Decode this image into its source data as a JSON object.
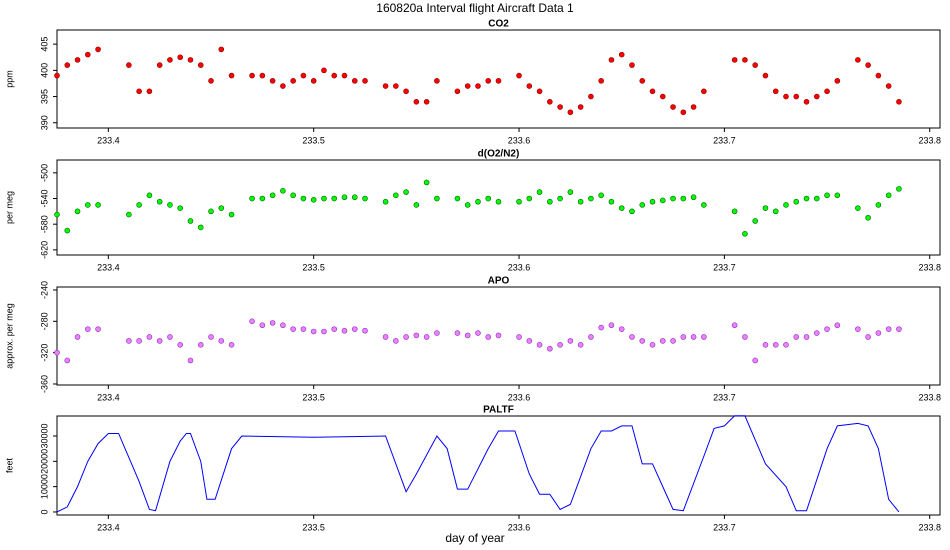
{
  "title": "160820a   Interval flight Aircraft Data 1",
  "xlabel": "day of year",
  "chart_data": [
    {
      "type": "scatter",
      "title": "CO2",
      "ylabel": "ppm",
      "color": "#ff0000",
      "edge": "#8b0000",
      "xlim": [
        233.375,
        233.805
      ],
      "xticks": [
        233.4,
        233.5,
        233.6,
        233.7,
        233.8
      ],
      "ylim": [
        389,
        407.7
      ],
      "yticks": [
        390,
        395,
        400,
        405
      ],
      "x": [
        233.375,
        233.38,
        233.385,
        233.39,
        233.395,
        233.41,
        233.415,
        233.42,
        233.425,
        233.43,
        233.435,
        233.44,
        233.445,
        233.45,
        233.455,
        233.46,
        233.47,
        233.475,
        233.48,
        233.485,
        233.49,
        233.495,
        233.5,
        233.505,
        233.51,
        233.515,
        233.52,
        233.525,
        233.535,
        233.54,
        233.545,
        233.55,
        233.555,
        233.56,
        233.57,
        233.575,
        233.58,
        233.585,
        233.59,
        233.6,
        233.605,
        233.61,
        233.615,
        233.62,
        233.625,
        233.63,
        233.635,
        233.64,
        233.645,
        233.65,
        233.655,
        233.66,
        233.665,
        233.67,
        233.675,
        233.68,
        233.685,
        233.69,
        233.705,
        233.71,
        233.715,
        233.72,
        233.725,
        233.73,
        233.735,
        233.74,
        233.745,
        233.75,
        233.755,
        233.765,
        233.77,
        233.775,
        233.78,
        233.785
      ],
      "values": [
        399,
        401,
        402,
        403,
        404,
        401,
        396,
        396,
        401,
        402,
        402.5,
        402,
        401,
        398,
        404,
        399,
        399,
        399,
        398,
        397,
        398,
        399,
        398,
        400,
        399,
        399,
        398,
        398,
        397,
        397,
        396,
        394,
        394,
        398,
        396,
        397,
        397,
        398,
        398,
        399,
        397,
        396,
        394,
        393,
        392,
        393,
        395,
        398,
        402,
        403,
        401,
        398,
        396,
        395,
        393,
        392,
        393,
        396,
        402,
        402,
        401,
        399,
        396,
        395,
        395,
        394,
        395,
        396,
        398,
        402,
        401,
        399,
        397,
        394
      ]
    },
    {
      "type": "scatter",
      "title": "d(O2/N2)",
      "ylabel": "per meg",
      "color": "#00ff00",
      "edge": "#006400",
      "xlim": [
        233.375,
        233.805
      ],
      "xticks": [
        233.4,
        233.5,
        233.6,
        233.7,
        233.8
      ],
      "ylim": [
        -628,
        -480
      ],
      "yticks": [
        -620,
        -580,
        -540,
        -500
      ],
      "x": [
        233.375,
        233.38,
        233.385,
        233.39,
        233.395,
        233.41,
        233.415,
        233.42,
        233.425,
        233.43,
        233.435,
        233.44,
        233.445,
        233.45,
        233.455,
        233.46,
        233.47,
        233.475,
        233.48,
        233.485,
        233.49,
        233.495,
        233.5,
        233.505,
        233.51,
        233.515,
        233.52,
        233.525,
        233.535,
        233.54,
        233.545,
        233.55,
        233.555,
        233.56,
        233.57,
        233.575,
        233.58,
        233.585,
        233.59,
        233.6,
        233.605,
        233.61,
        233.615,
        233.62,
        233.625,
        233.63,
        233.635,
        233.64,
        233.645,
        233.65,
        233.655,
        233.66,
        233.665,
        233.67,
        233.675,
        233.68,
        233.685,
        233.69,
        233.705,
        233.71,
        233.715,
        233.72,
        233.725,
        233.73,
        233.735,
        233.74,
        233.745,
        233.75,
        233.755,
        233.765,
        233.77,
        233.775,
        233.78,
        233.785
      ],
      "values": [
        -565,
        -590,
        -560,
        -550,
        -550,
        -565,
        -550,
        -535,
        -545,
        -550,
        -555,
        -575,
        -585,
        -560,
        -555,
        -565,
        -540,
        -540,
        -535,
        -528,
        -535,
        -540,
        -542,
        -540,
        -540,
        -538,
        -538,
        -540,
        -545,
        -535,
        -530,
        -550,
        -515,
        -540,
        -540,
        -550,
        -545,
        -540,
        -545,
        -545,
        -540,
        -530,
        -545,
        -540,
        -530,
        -545,
        -540,
        -535,
        -545,
        -555,
        -560,
        -550,
        -545,
        -543,
        -540,
        -540,
        -538,
        -550,
        -560,
        -595,
        -575,
        -555,
        -560,
        -550,
        -545,
        -540,
        -540,
        -535,
        -535,
        -555,
        -570,
        -550,
        -535,
        -525
      ]
    },
    {
      "type": "scatter",
      "title": "APO",
      "ylabel": "approx. per meg",
      "color": "#ee82ee",
      "edge": "#8a2be2",
      "xlim": [
        233.375,
        233.805
      ],
      "xticks": [
        233.4,
        233.5,
        233.6,
        233.7,
        233.8
      ],
      "ylim": [
        -361.3,
        -236.2
      ],
      "yticks": [
        -360,
        -320,
        -280,
        -240
      ],
      "x": [
        233.375,
        233.38,
        233.385,
        233.39,
        233.395,
        233.41,
        233.415,
        233.42,
        233.425,
        233.43,
        233.435,
        233.44,
        233.445,
        233.45,
        233.455,
        233.46,
        233.47,
        233.475,
        233.48,
        233.485,
        233.49,
        233.495,
        233.5,
        233.505,
        233.51,
        233.515,
        233.52,
        233.525,
        233.535,
        233.54,
        233.545,
        233.55,
        233.555,
        233.56,
        233.57,
        233.575,
        233.58,
        233.585,
        233.59,
        233.6,
        233.605,
        233.61,
        233.615,
        233.62,
        233.625,
        233.63,
        233.635,
        233.64,
        233.645,
        233.65,
        233.655,
        233.66,
        233.665,
        233.67,
        233.675,
        233.68,
        233.685,
        233.69,
        233.705,
        233.71,
        233.715,
        233.72,
        233.725,
        233.73,
        233.735,
        233.74,
        233.745,
        233.75,
        233.755,
        233.765,
        233.77,
        233.775,
        233.78,
        233.785
      ],
      "values": [
        -320,
        -330,
        -300,
        -290,
        -290,
        -305,
        -305,
        -300,
        -305,
        -300,
        -310,
        -330,
        -310,
        -300,
        -305,
        -310,
        -280,
        -285,
        -282,
        -285,
        -290,
        -290,
        -293,
        -293,
        -290,
        -292,
        -290,
        -292,
        -300,
        -305,
        -300,
        -298,
        -300,
        -295,
        -295,
        -298,
        -295,
        -300,
        -298,
        -300,
        -305,
        -310,
        -315,
        -310,
        -305,
        -310,
        -300,
        -288,
        -285,
        -290,
        -300,
        -305,
        -310,
        -305,
        -305,
        -300,
        -300,
        -300,
        -285,
        -300,
        -330,
        -310,
        -310,
        -310,
        -300,
        -300,
        -295,
        -290,
        -285,
        -290,
        -300,
        -295,
        -290,
        -290
      ]
    },
    {
      "type": "line",
      "title": "PALTF",
      "ylabel": "feet",
      "color": "#0000ff",
      "xlim": [
        233.375,
        233.805
      ],
      "xticks": [
        233.4,
        233.5,
        233.6,
        233.7,
        233.8
      ],
      "ylim": [
        -1200,
        37900
      ],
      "yticks": [
        0,
        10000,
        20000,
        30000
      ],
      "x": [
        233.375,
        233.38,
        233.385,
        233.39,
        233.395,
        233.4,
        233.405,
        233.415,
        233.42,
        233.423,
        233.43,
        233.435,
        233.438,
        233.44,
        233.445,
        233.448,
        233.452,
        233.46,
        233.465,
        233.5,
        233.535,
        233.545,
        233.55,
        233.56,
        233.565,
        233.57,
        233.575,
        233.585,
        233.59,
        233.598,
        233.605,
        233.61,
        233.615,
        233.62,
        233.625,
        233.635,
        233.64,
        233.645,
        233.65,
        233.655,
        233.66,
        233.665,
        233.67,
        233.675,
        233.68,
        233.69,
        233.695,
        233.7,
        233.705,
        233.71,
        233.72,
        233.73,
        233.735,
        233.74,
        233.75,
        233.755,
        233.765,
        233.77,
        233.775,
        233.78,
        233.785
      ],
      "values": [
        0,
        2000,
        10000,
        20000,
        27000,
        31000,
        31000,
        12000,
        1000,
        500,
        20000,
        28000,
        31000,
        31000,
        20000,
        5000,
        5000,
        25000,
        30000,
        29500,
        30000,
        8000,
        15000,
        30000,
        25000,
        9000,
        9000,
        25000,
        32000,
        32000,
        15000,
        7000,
        7000,
        1000,
        3000,
        25000,
        32000,
        32000,
        34000,
        34000,
        19000,
        19000,
        10000,
        1000,
        500,
        22000,
        33000,
        34000,
        38000,
        38000,
        19000,
        10000,
        500,
        500,
        25000,
        34000,
        35000,
        34000,
        25000,
        5000,
        0
      ]
    }
  ]
}
